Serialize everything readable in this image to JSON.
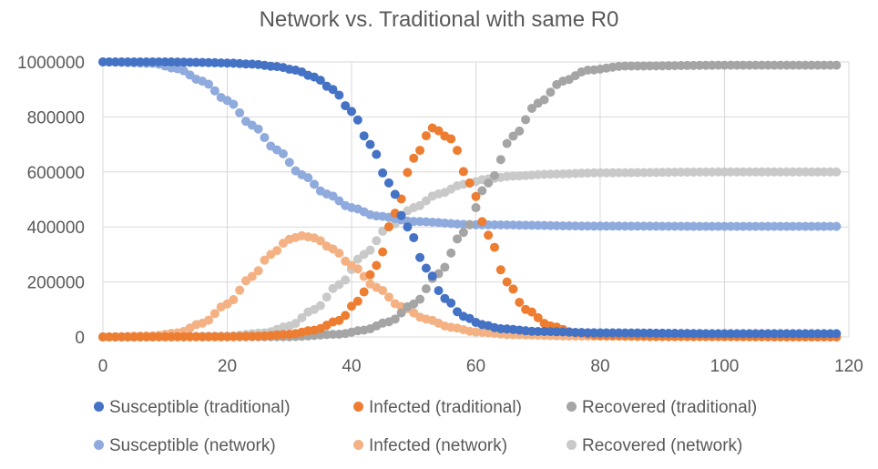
{
  "chart_data": {
    "type": "scatter",
    "title": "Network vs. Traditional with same R0",
    "xlabel": "",
    "ylabel": "",
    "xlim": [
      0,
      120
    ],
    "ylim": [
      0,
      1000000
    ],
    "x_ticks": [
      "0",
      "20",
      "40",
      "60",
      "80",
      "100",
      "120"
    ],
    "y_ticks": [
      "0",
      "200000",
      "400000",
      "600000",
      "800000",
      "1000000"
    ],
    "grid": "both",
    "legend_position": "bottom",
    "x_range": [
      0,
      118
    ],
    "series": [
      {
        "name": "Susceptible (traditional)",
        "color": "#4472C4",
        "points": [
          [
            0,
            1000000
          ],
          [
            10,
            1000000
          ],
          [
            16,
            998000
          ],
          [
            20,
            996000
          ],
          [
            24,
            992000
          ],
          [
            28,
            983000
          ],
          [
            31,
            970000
          ],
          [
            34,
            945000
          ],
          [
            37,
            900000
          ],
          [
            40,
            820000
          ],
          [
            43,
            700000
          ],
          [
            46,
            560000
          ],
          [
            49,
            400000
          ],
          [
            52,
            250000
          ],
          [
            55,
            140000
          ],
          [
            58,
            75000
          ],
          [
            61,
            45000
          ],
          [
            64,
            30000
          ],
          [
            70,
            20000
          ],
          [
            80,
            15000
          ],
          [
            100,
            12000
          ],
          [
            118,
            12000
          ]
        ]
      },
      {
        "name": "Infected (traditional)",
        "color": "#ED7D31",
        "points": [
          [
            0,
            0
          ],
          [
            20,
            1000
          ],
          [
            25,
            3000
          ],
          [
            30,
            10000
          ],
          [
            34,
            25000
          ],
          [
            38,
            60000
          ],
          [
            41,
            130000
          ],
          [
            44,
            260000
          ],
          [
            47,
            450000
          ],
          [
            50,
            650000
          ],
          [
            53,
            760000
          ],
          [
            56,
            720000
          ],
          [
            59,
            560000
          ],
          [
            62,
            370000
          ],
          [
            65,
            200000
          ],
          [
            68,
            100000
          ],
          [
            72,
            40000
          ],
          [
            76,
            15000
          ],
          [
            80,
            6000
          ],
          [
            90,
            2000
          ],
          [
            118,
            0
          ]
        ]
      },
      {
        "name": "Recovered (traditional)",
        "color": "#A5A5A5",
        "points": [
          [
            0,
            0
          ],
          [
            30,
            1000
          ],
          [
            38,
            10000
          ],
          [
            42,
            25000
          ],
          [
            46,
            55000
          ],
          [
            50,
            120000
          ],
          [
            54,
            230000
          ],
          [
            58,
            380000
          ],
          [
            62,
            560000
          ],
          [
            66,
            730000
          ],
          [
            70,
            850000
          ],
          [
            74,
            930000
          ],
          [
            78,
            970000
          ],
          [
            84,
            985000
          ],
          [
            100,
            988000
          ],
          [
            118,
            988000
          ]
        ]
      },
      {
        "name": "Susceptible (network)",
        "color": "#8FAADC",
        "points": [
          [
            0,
            1000000
          ],
          [
            8,
            995000
          ],
          [
            12,
            975000
          ],
          [
            16,
            930000
          ],
          [
            20,
            860000
          ],
          [
            24,
            770000
          ],
          [
            28,
            680000
          ],
          [
            32,
            590000
          ],
          [
            36,
            520000
          ],
          [
            40,
            470000
          ],
          [
            44,
            440000
          ],
          [
            50,
            420000
          ],
          [
            60,
            408000
          ],
          [
            80,
            403000
          ],
          [
            100,
            402000
          ],
          [
            118,
            402000
          ]
        ]
      },
      {
        "name": "Infected (network)",
        "color": "#F4B183",
        "points": [
          [
            0,
            0
          ],
          [
            8,
            4000
          ],
          [
            12,
            15000
          ],
          [
            16,
            50000
          ],
          [
            20,
            120000
          ],
          [
            24,
            220000
          ],
          [
            27,
            300000
          ],
          [
            30,
            355000
          ],
          [
            32,
            368000
          ],
          [
            34,
            360000
          ],
          [
            37,
            320000
          ],
          [
            40,
            260000
          ],
          [
            44,
            180000
          ],
          [
            48,
            110000
          ],
          [
            52,
            65000
          ],
          [
            56,
            35000
          ],
          [
            60,
            18000
          ],
          [
            66,
            8000
          ],
          [
            76,
            3000
          ],
          [
            90,
            1000
          ],
          [
            118,
            0
          ]
        ]
      },
      {
        "name": "Recovered (network)",
        "color": "#C9C9C9",
        "points": [
          [
            0,
            0
          ],
          [
            20,
            3000
          ],
          [
            26,
            15000
          ],
          [
            30,
            40000
          ],
          [
            34,
            100000
          ],
          [
            38,
            190000
          ],
          [
            42,
            300000
          ],
          [
            46,
            400000
          ],
          [
            50,
            470000
          ],
          [
            54,
            520000
          ],
          [
            58,
            555000
          ],
          [
            62,
            575000
          ],
          [
            66,
            585000
          ],
          [
            72,
            592000
          ],
          [
            80,
            597000
          ],
          [
            100,
            600000
          ],
          [
            118,
            600000
          ]
        ]
      }
    ]
  }
}
